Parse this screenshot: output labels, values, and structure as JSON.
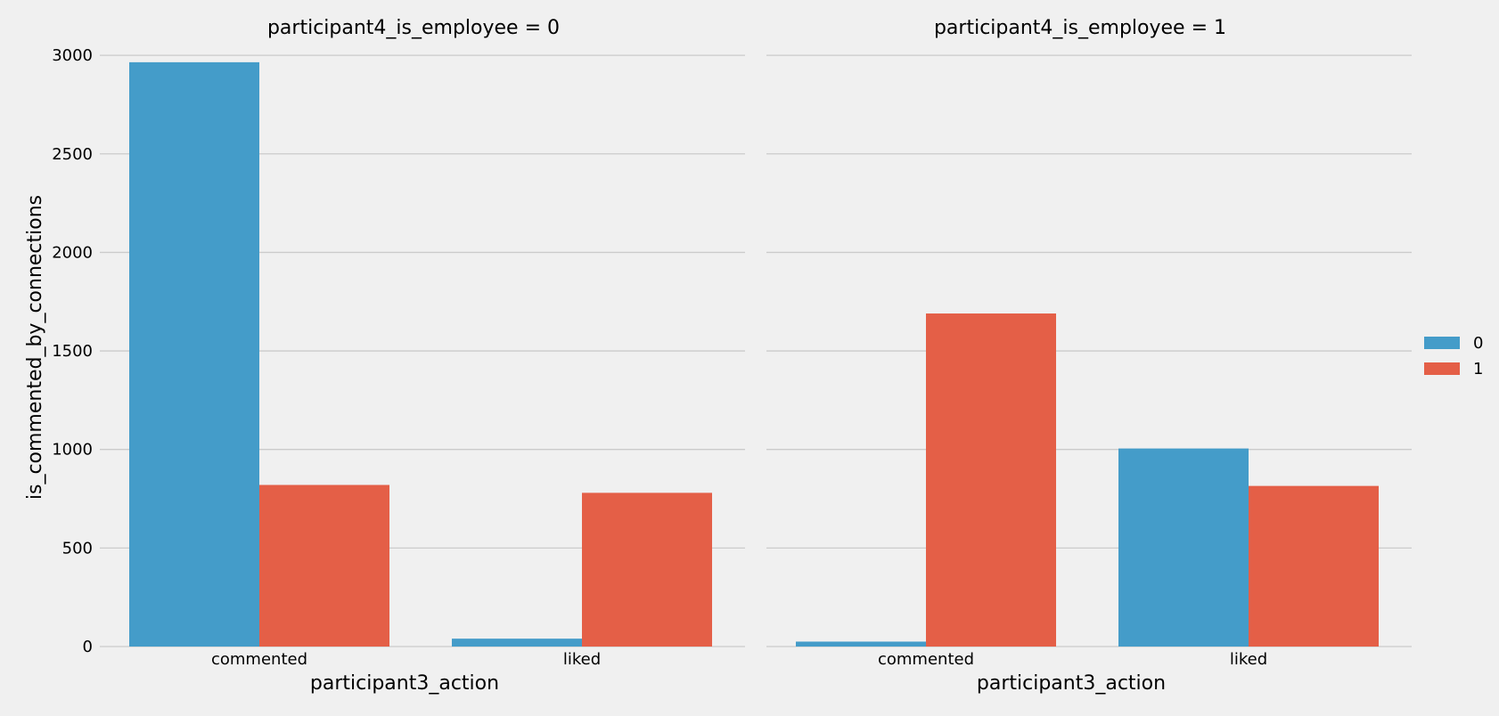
{
  "chart_data": {
    "type": "bar",
    "ylabel": "is_commented_by_connections",
    "ylim": [
      0,
      3100
    ],
    "yticks": [
      0,
      500,
      1000,
      1500,
      2000,
      2500,
      3000
    ],
    "grid": true,
    "legend_position": "right",
    "colors": {
      "0": "#449cc9",
      "1": "#e45f47",
      "background": "#f0f0f0",
      "grid": "#cbcbcb"
    },
    "legend": [
      {
        "label": "0",
        "color": "#449cc9"
      },
      {
        "label": "1",
        "color": "#e45f47"
      }
    ],
    "panels": [
      {
        "title": "participant4_is_employee = 0",
        "xlabel": "participant3_action",
        "categories": [
          "commented",
          "liked"
        ],
        "series": [
          {
            "name": "0",
            "values": [
              2965,
              40
            ]
          },
          {
            "name": "1",
            "values": [
              820,
              780
            ]
          }
        ]
      },
      {
        "title": "participant4_is_employee = 1",
        "xlabel": "participant3_action",
        "categories": [
          "commented",
          "liked"
        ],
        "series": [
          {
            "name": "0",
            "values": [
              25,
              1005
            ]
          },
          {
            "name": "1",
            "values": [
              1690,
              815
            ]
          }
        ]
      }
    ]
  }
}
